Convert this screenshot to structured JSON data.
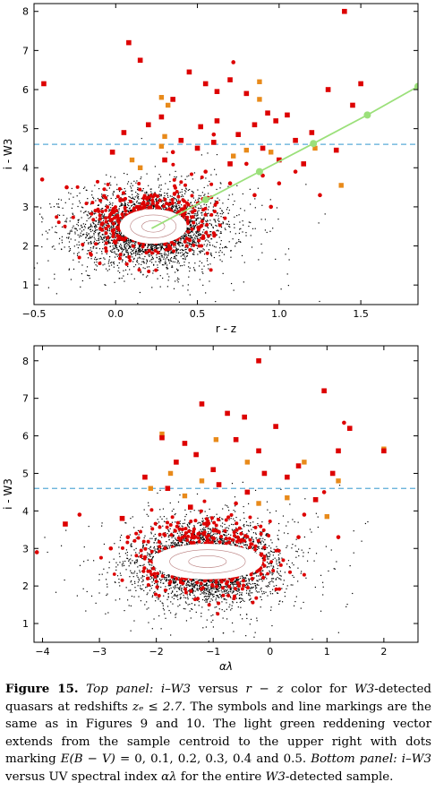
{
  "chart_data": [
    {
      "type": "scatter",
      "panel": "top",
      "xlabel": "r - z",
      "ylabel": "i - W3",
      "xlim": [
        -0.5,
        1.85
      ],
      "ylim": [
        0.5,
        8.2
      ],
      "xticks": [
        "−0.5",
        "0.0",
        "0.5",
        "1.0",
        "1.5"
      ],
      "xtick_values": [
        -0.5,
        0.0,
        0.5,
        1.0,
        1.5
      ],
      "yticks": [
        "1",
        "2",
        "3",
        "4",
        "5",
        "6",
        "7",
        "8"
      ],
      "ytick_values": [
        1,
        2,
        3,
        4,
        5,
        6,
        7,
        8
      ],
      "threshold_line": 4.6,
      "centroid": [
        0.22,
        2.45
      ],
      "cloud_spread": [
        0.22,
        0.5
      ],
      "dense_cloud_spread": [
        0.14,
        0.32
      ],
      "ellipse": {
        "cx": 0.23,
        "cy": 2.5,
        "rx": 0.2,
        "ry": 0.42
      },
      "reddening_vector": {
        "ebv": [
          0,
          0.1,
          0.2,
          0.3,
          0.4,
          0.5
        ],
        "x": [
          0.22,
          0.55,
          0.88,
          1.21,
          1.54,
          1.85
        ],
        "y": [
          2.45,
          3.18,
          3.9,
          4.62,
          5.35,
          6.08
        ]
      },
      "red_squares": [
        [
          -0.44,
          6.15
        ],
        [
          0.08,
          7.2
        ],
        [
          0.15,
          6.75
        ],
        [
          1.4,
          8.0
        ],
        [
          0.45,
          6.45
        ],
        [
          0.55,
          6.15
        ],
        [
          0.62,
          5.95
        ],
        [
          0.7,
          6.25
        ],
        [
          0.8,
          5.9
        ],
        [
          0.93,
          5.4
        ],
        [
          1.05,
          5.35
        ],
        [
          1.3,
          6.0
        ],
        [
          1.45,
          5.6
        ],
        [
          1.5,
          6.15
        ],
        [
          0.35,
          5.75
        ],
        [
          0.28,
          5.3
        ],
        [
          0.2,
          5.1
        ],
        [
          0.52,
          5.05
        ],
        [
          0.62,
          5.2
        ],
        [
          0.75,
          4.85
        ],
        [
          0.85,
          5.1
        ],
        [
          0.98,
          5.2
        ],
        [
          1.1,
          4.7
        ],
        [
          1.2,
          4.9
        ],
        [
          1.35,
          4.45
        ],
        [
          0.05,
          4.9
        ],
        [
          -0.02,
          4.4
        ],
        [
          0.4,
          4.7
        ],
        [
          0.9,
          4.5
        ],
        [
          1.0,
          4.2
        ],
        [
          1.15,
          4.1
        ],
        [
          0.3,
          4.2
        ],
        [
          0.7,
          4.1
        ],
        [
          0.5,
          4.5
        ],
        [
          0.6,
          4.65
        ]
      ],
      "orange_squares": [
        [
          0.28,
          5.8
        ],
        [
          0.88,
          6.2
        ],
        [
          0.88,
          5.75
        ],
        [
          0.3,
          4.8
        ],
        [
          0.32,
          5.6
        ],
        [
          0.95,
          4.4
        ],
        [
          0.72,
          4.3
        ],
        [
          1.22,
          4.5
        ],
        [
          0.1,
          4.2
        ],
        [
          0.28,
          4.55
        ],
        [
          0.8,
          4.45
        ],
        [
          1.38,
          3.55
        ],
        [
          0.15,
          4.0
        ]
      ],
      "red_circles": [
        [
          -0.45,
          3.7
        ],
        [
          -0.3,
          3.5
        ],
        [
          0.72,
          6.7
        ],
        [
          0.6,
          4.85
        ],
        [
          0.8,
          4.1
        ],
        [
          0.9,
          3.8
        ],
        [
          1.0,
          3.6
        ],
        [
          1.1,
          3.9
        ],
        [
          1.25,
          3.3
        ],
        [
          0.35,
          4.4
        ],
        [
          0.7,
          3.6
        ],
        [
          0.55,
          3.9
        ],
        [
          0.85,
          3.3
        ],
        [
          0.95,
          3.0
        ]
      ]
    },
    {
      "type": "scatter",
      "panel": "bottom",
      "xlabel": "αλ",
      "ylabel": "i - W3",
      "xlim": [
        -4.15,
        2.6
      ],
      "ylim": [
        0.5,
        8.4
      ],
      "xticks": [
        "−4",
        "−3",
        "−2",
        "−1",
        "0",
        "1",
        "2"
      ],
      "xtick_values": [
        -4,
        -3,
        -2,
        -1,
        0,
        1,
        2
      ],
      "yticks": [
        "1",
        "2",
        "3",
        "4",
        "5",
        "6",
        "7",
        "8"
      ],
      "ytick_values": [
        1,
        2,
        3,
        4,
        5,
        6,
        7,
        8
      ],
      "threshold_line": 4.6,
      "centroid": [
        -1.1,
        2.6
      ],
      "cloud_spread": [
        0.62,
        0.55
      ],
      "dense_cloud_spread": [
        0.45,
        0.4
      ],
      "ellipse": {
        "cx": -1.1,
        "cy": 2.65,
        "rx": 0.95,
        "ry": 0.45
      },
      "red_squares": [
        [
          -0.2,
          8.0
        ],
        [
          0.95,
          7.2
        ],
        [
          -1.2,
          6.85
        ],
        [
          -0.75,
          6.6
        ],
        [
          -0.45,
          6.5
        ],
        [
          1.4,
          6.2
        ],
        [
          -1.9,
          5.95
        ],
        [
          -1.5,
          5.8
        ],
        [
          -0.6,
          5.9
        ],
        [
          0.1,
          6.25
        ],
        [
          -1.65,
          5.3
        ],
        [
          -1.3,
          5.5
        ],
        [
          -1.0,
          5.1
        ],
        [
          -0.2,
          5.6
        ],
        [
          0.5,
          5.2
        ],
        [
          1.1,
          5.0
        ],
        [
          2.0,
          5.6
        ],
        [
          -2.2,
          4.9
        ],
        [
          -1.8,
          4.6
        ],
        [
          -0.9,
          4.7
        ],
        [
          0.3,
          4.9
        ],
        [
          0.8,
          4.3
        ],
        [
          -3.6,
          3.65
        ],
        [
          -2.6,
          3.8
        ],
        [
          -1.4,
          4.1
        ],
        [
          -0.4,
          4.5
        ],
        [
          1.2,
          5.6
        ],
        [
          -0.1,
          5.0
        ]
      ],
      "orange_squares": [
        [
          -1.9,
          6.05
        ],
        [
          -1.75,
          5.0
        ],
        [
          -1.5,
          4.4
        ],
        [
          -0.95,
          5.9
        ],
        [
          -0.4,
          5.3
        ],
        [
          0.6,
          5.3
        ],
        [
          2.0,
          5.65
        ],
        [
          1.2,
          4.8
        ],
        [
          -2.1,
          4.6
        ],
        [
          0.3,
          4.35
        ],
        [
          1.0,
          3.85
        ],
        [
          -1.2,
          4.8
        ],
        [
          -0.2,
          4.2
        ]
      ],
      "red_circles": [
        [
          -4.1,
          2.9
        ],
        [
          -3.35,
          3.9
        ],
        [
          -2.5,
          3.3
        ],
        [
          1.3,
          6.35
        ],
        [
          0.95,
          4.5
        ],
        [
          -0.6,
          4.2
        ],
        [
          0.6,
          3.9
        ],
        [
          1.2,
          3.3
        ],
        [
          -2.8,
          3.0
        ],
        [
          0.5,
          3.3
        ]
      ]
    }
  ],
  "caption": {
    "lead": "Figure 15.",
    "parts": [
      {
        "style": "italic",
        "text": " Top panel: "
      },
      {
        "style": "math",
        "text": "i–W3"
      },
      {
        "style": "plain",
        "text": " versus "
      },
      {
        "style": "math",
        "text": "r − z"
      },
      {
        "style": "plain",
        "text": " color for "
      },
      {
        "style": "math",
        "text": "W3"
      },
      {
        "style": "plain",
        "text": "-detected quasars at redshifts "
      },
      {
        "style": "math",
        "text": "zₑ ≤ 2.7"
      },
      {
        "style": "plain",
        "text": ". The symbols and line markings are the same as in Figures 9 and 10. The light green reddening vector extends from the sample centroid to the upper right with dots marking "
      },
      {
        "style": "math",
        "text": "E(B − V)"
      },
      {
        "style": "plain",
        "text": " = 0, 0.1, 0.2, 0.3, 0.4 and 0.5. "
      },
      {
        "style": "italic",
        "text": "Bottom panel: "
      },
      {
        "style": "math",
        "text": "i–W3"
      },
      {
        "style": "plain",
        "text": " versus UV spectral index "
      },
      {
        "style": "math",
        "text": "αλ"
      },
      {
        "style": "plain",
        "text": " for the entire "
      },
      {
        "style": "math",
        "text": "W3"
      },
      {
        "style": "plain",
        "text": "-detected sample."
      }
    ]
  },
  "colors": {
    "red": "#dd0000",
    "orange": "#e88a1a",
    "threshold": "#5aabd8",
    "reddening": "#9be07a",
    "points": "#000000"
  }
}
